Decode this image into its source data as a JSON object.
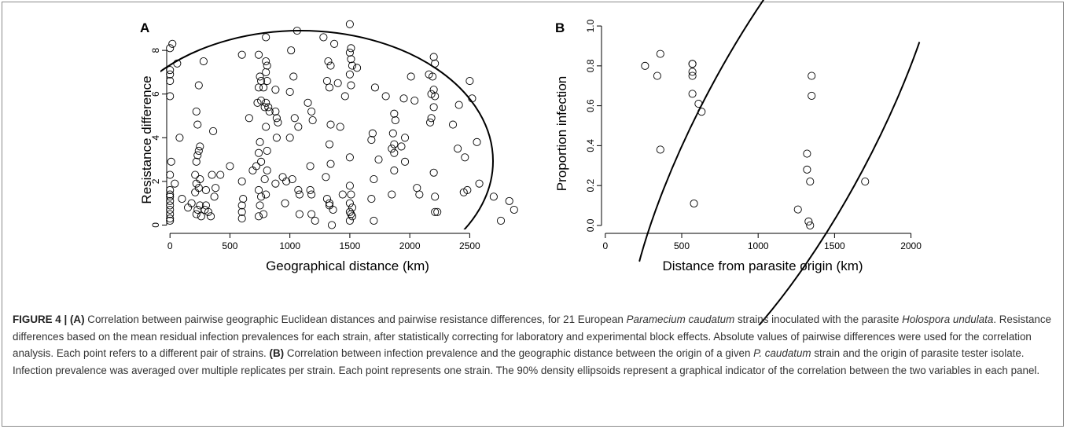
{
  "chart_data": [
    {
      "panel": "A",
      "type": "scatter",
      "xlabel": "Geographical distance (km)",
      "ylabel": "Resistance difference",
      "xlim": [
        -80,
        2950
      ],
      "ylim": [
        -0.2,
        9.3
      ],
      "xticks": [
        0,
        500,
        1000,
        1500,
        2000,
        2500
      ],
      "yticks": [
        0,
        2,
        4,
        6,
        8
      ],
      "ellipse": "90% density ellipse",
      "points": [
        [
          0,
          8.1
        ],
        [
          20,
          8.3
        ],
        [
          0,
          7.1
        ],
        [
          0,
          6.9
        ],
        [
          0,
          6.6
        ],
        [
          0,
          5.9
        ],
        [
          60,
          7.4
        ],
        [
          0,
          2.3
        ],
        [
          10,
          2.9
        ],
        [
          0,
          1.6
        ],
        [
          0,
          1.4
        ],
        [
          0,
          1.3
        ],
        [
          0,
          1.1
        ],
        [
          0,
          0.9
        ],
        [
          0,
          0.7
        ],
        [
          0,
          0.5
        ],
        [
          0,
          0.3
        ],
        [
          0,
          0.2
        ],
        [
          40,
          1.9
        ],
        [
          80,
          4.0
        ],
        [
          100,
          1.2
        ],
        [
          150,
          0.8
        ],
        [
          180,
          1.0
        ],
        [
          220,
          5.2
        ],
        [
          240,
          6.4
        ],
        [
          230,
          4.6
        ],
        [
          250,
          3.6
        ],
        [
          240,
          3.4
        ],
        [
          230,
          3.2
        ],
        [
          220,
          2.9
        ],
        [
          210,
          2.3
        ],
        [
          250,
          2.1
        ],
        [
          220,
          1.9
        ],
        [
          240,
          1.7
        ],
        [
          210,
          1.5
        ],
        [
          250,
          0.9
        ],
        [
          230,
          0.7
        ],
        [
          220,
          0.5
        ],
        [
          260,
          0.4
        ],
        [
          280,
          7.5
        ],
        [
          300,
          1.6
        ],
        [
          320,
          0.6
        ],
        [
          350,
          2.3
        ],
        [
          360,
          4.3
        ],
        [
          380,
          1.7
        ],
        [
          370,
          1.3
        ],
        [
          300,
          0.9
        ],
        [
          290,
          0.7
        ],
        [
          340,
          0.4
        ],
        [
          420,
          2.3
        ],
        [
          500,
          2.7
        ],
        [
          600,
          7.8
        ],
        [
          600,
          2.0
        ],
        [
          610,
          1.2
        ],
        [
          600,
          0.9
        ],
        [
          600,
          0.6
        ],
        [
          600,
          0.3
        ],
        [
          660,
          4.9
        ],
        [
          690,
          2.5
        ],
        [
          720,
          2.7
        ],
        [
          740,
          7.8
        ],
        [
          750,
          6.8
        ],
        [
          760,
          6.6
        ],
        [
          740,
          6.3
        ],
        [
          760,
          5.7
        ],
        [
          730,
          5.6
        ],
        [
          750,
          3.8
        ],
        [
          740,
          3.3
        ],
        [
          760,
          2.9
        ],
        [
          740,
          1.6
        ],
        [
          760,
          1.3
        ],
        [
          750,
          0.9
        ],
        [
          740,
          0.4
        ],
        [
          780,
          0.5
        ],
        [
          780,
          6.3
        ],
        [
          790,
          5.4
        ],
        [
          800,
          8.6
        ],
        [
          800,
          7.5
        ],
        [
          810,
          7.3
        ],
        [
          800,
          7.0
        ],
        [
          810,
          6.6
        ],
        [
          800,
          5.6
        ],
        [
          820,
          5.4
        ],
        [
          830,
          5.2
        ],
        [
          800,
          4.5
        ],
        [
          810,
          3.4
        ],
        [
          810,
          2.5
        ],
        [
          790,
          2.1
        ],
        [
          800,
          1.4
        ],
        [
          880,
          6.2
        ],
        [
          880,
          5.2
        ],
        [
          890,
          4.9
        ],
        [
          900,
          4.7
        ],
        [
          890,
          4.0
        ],
        [
          880,
          1.9
        ],
        [
          940,
          2.2
        ],
        [
          960,
          1.0
        ],
        [
          970,
          2.0
        ],
        [
          1000,
          6.1
        ],
        [
          1010,
          8.0
        ],
        [
          1030,
          6.8
        ],
        [
          1040,
          4.9
        ],
        [
          1000,
          4.0
        ],
        [
          1020,
          2.1
        ],
        [
          1060,
          8.9
        ],
        [
          1070,
          4.5
        ],
        [
          1070,
          1.6
        ],
        [
          1080,
          1.4
        ],
        [
          1080,
          0.5
        ],
        [
          1150,
          5.6
        ],
        [
          1180,
          5.2
        ],
        [
          1190,
          4.8
        ],
        [
          1170,
          2.7
        ],
        [
          1170,
          1.6
        ],
        [
          1180,
          1.4
        ],
        [
          1180,
          0.5
        ],
        [
          1210,
          0.2
        ],
        [
          1280,
          8.6
        ],
        [
          1320,
          7.5
        ],
        [
          1330,
          6.3
        ],
        [
          1340,
          7.3
        ],
        [
          1310,
          6.6
        ],
        [
          1340,
          4.6
        ],
        [
          1330,
          3.7
        ],
        [
          1340,
          2.8
        ],
        [
          1300,
          2.2
        ],
        [
          1310,
          1.2
        ],
        [
          1330,
          1.0
        ],
        [
          1330,
          0.9
        ],
        [
          1350,
          0.0
        ],
        [
          1360,
          0.7
        ],
        [
          1370,
          8.3
        ],
        [
          1400,
          6.5
        ],
        [
          1420,
          4.5
        ],
        [
          1440,
          1.4
        ],
        [
          1460,
          5.9
        ],
        [
          1500,
          9.2
        ],
        [
          1510,
          8.1
        ],
        [
          1500,
          7.9
        ],
        [
          1510,
          7.6
        ],
        [
          1500,
          6.9
        ],
        [
          1510,
          6.4
        ],
        [
          1520,
          7.3
        ],
        [
          1500,
          3.1
        ],
        [
          1500,
          1.8
        ],
        [
          1510,
          1.4
        ],
        [
          1500,
          1.0
        ],
        [
          1520,
          0.8
        ],
        [
          1500,
          0.6
        ],
        [
          1510,
          0.5
        ],
        [
          1520,
          0.4
        ],
        [
          1500,
          0.2
        ],
        [
          1560,
          7.2
        ],
        [
          1680,
          3.9
        ],
        [
          1690,
          4.2
        ],
        [
          1710,
          6.3
        ],
        [
          1700,
          2.1
        ],
        [
          1680,
          1.2
        ],
        [
          1700,
          0.2
        ],
        [
          1740,
          3.0
        ],
        [
          1800,
          5.9
        ],
        [
          1870,
          5.1
        ],
        [
          1880,
          4.8
        ],
        [
          1860,
          4.2
        ],
        [
          1870,
          3.7
        ],
        [
          1850,
          3.5
        ],
        [
          1870,
          3.3
        ],
        [
          1870,
          2.5
        ],
        [
          1850,
          1.4
        ],
        [
          1930,
          3.6
        ],
        [
          1950,
          5.8
        ],
        [
          1960,
          4.0
        ],
        [
          1960,
          2.9
        ],
        [
          2010,
          6.8
        ],
        [
          2040,
          5.7
        ],
        [
          2060,
          1.7
        ],
        [
          2080,
          1.4
        ],
        [
          2160,
          6.9
        ],
        [
          2200,
          7.7
        ],
        [
          2190,
          6.8
        ],
        [
          2210,
          7.4
        ],
        [
          2200,
          6.2
        ],
        [
          2180,
          6.0
        ],
        [
          2210,
          5.9
        ],
        [
          2200,
          5.4
        ],
        [
          2180,
          4.9
        ],
        [
          2170,
          4.7
        ],
        [
          2200,
          2.4
        ],
        [
          2210,
          1.3
        ],
        [
          2210,
          0.6
        ],
        [
          2230,
          0.6
        ],
        [
          2360,
          4.6
        ],
        [
          2410,
          5.5
        ],
        [
          2400,
          3.5
        ],
        [
          2460,
          3.1
        ],
        [
          2450,
          1.5
        ],
        [
          2480,
          1.6
        ],
        [
          2500,
          6.6
        ],
        [
          2520,
          5.8
        ],
        [
          2560,
          3.8
        ],
        [
          2580,
          1.9
        ],
        [
          2700,
          1.3
        ],
        [
          2760,
          0.2
        ],
        [
          2830,
          1.1
        ],
        [
          2870,
          0.7
        ]
      ]
    },
    {
      "panel": "B",
      "type": "scatter",
      "xlabel": "Distance from parasite origin (km)",
      "ylabel": "Proportion infection",
      "xlim": [
        -30,
        2100
      ],
      "ylim": [
        -0.02,
        1.02
      ],
      "xticks": [
        0,
        500,
        1000,
        1500,
        2000
      ],
      "yticks": [
        0.0,
        0.2,
        0.4,
        0.6,
        0.8,
        1.0
      ],
      "ellipse": "90% density ellipse",
      "points": [
        [
          260,
          0.8
        ],
        [
          340,
          0.75
        ],
        [
          360,
          0.86
        ],
        [
          360,
          0.38
        ],
        [
          570,
          0.81
        ],
        [
          570,
          0.81
        ],
        [
          570,
          0.77
        ],
        [
          570,
          0.75
        ],
        [
          570,
          0.66
        ],
        [
          580,
          0.11
        ],
        [
          610,
          0.61
        ],
        [
          630,
          0.57
        ],
        [
          1260,
          0.08
        ],
        [
          1320,
          0.36
        ],
        [
          1320,
          0.28
        ],
        [
          1330,
          0.02
        ],
        [
          1340,
          0.0
        ],
        [
          1340,
          0.22
        ],
        [
          1350,
          0.75
        ],
        [
          1350,
          0.65
        ],
        [
          1700,
          0.22
        ]
      ]
    }
  ],
  "caption": {
    "label": "FIGURE 4 | ",
    "a_label": "(A)",
    "a_text_1": " Correlation between pairwise geographic Euclidean distances and pairwise resistance differences, for 21 European ",
    "a_species_1": "Paramecium caudatum",
    "a_text_2": " strains inoculated with the parasite ",
    "a_species_2": "Holospora undulata",
    "a_text_3": ". Resistance differences based on the mean residual infection prevalences for each strain, after statistically correcting for laboratory and experimental block effects. Absolute values of pairwise differences were used for the correlation analysis. Each point refers to a different pair of strains. ",
    "b_label": "(B)",
    "b_text_1": " Correlation between infection prevalence and the geographic distance between the origin of a given ",
    "b_species": "P. caudatum",
    "b_text_2": " strain and the origin of parasite tester isolate. Infection prevalence was averaged over multiple replicates per strain. Each point represents one strain. The 90% density ellipsoids represent a graphical indicator of the correlation between the two variables in each panel."
  }
}
